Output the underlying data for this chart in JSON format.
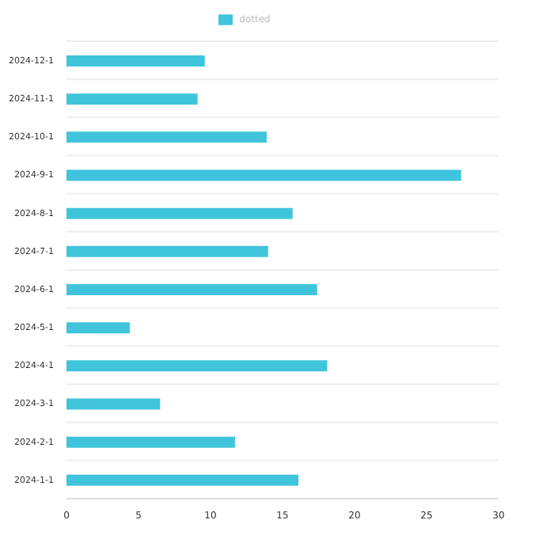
{
  "chart_data": {
    "type": "bar",
    "orientation": "horizontal",
    "categories": [
      "2024-12-1",
      "2024-11-1",
      "2024-10-1",
      "2024-9-1",
      "2024-8-1",
      "2024-7-1",
      "2024-6-1",
      "2024-5-1",
      "2024-4-1",
      "2024-3-1",
      "2024-2-1",
      "2024-1-1"
    ],
    "series": [
      {
        "name": "dotted",
        "color": "#40c4dc",
        "values": [
          9.6,
          9.1,
          13.9,
          27.4,
          15.7,
          14.0,
          17.4,
          4.4,
          18.1,
          6.5,
          11.7,
          16.1
        ]
      }
    ],
    "xlim": [
      0,
      30
    ],
    "xticks": [
      0,
      5,
      10,
      15,
      20,
      25,
      30
    ],
    "grid": "y",
    "legend": "top"
  }
}
